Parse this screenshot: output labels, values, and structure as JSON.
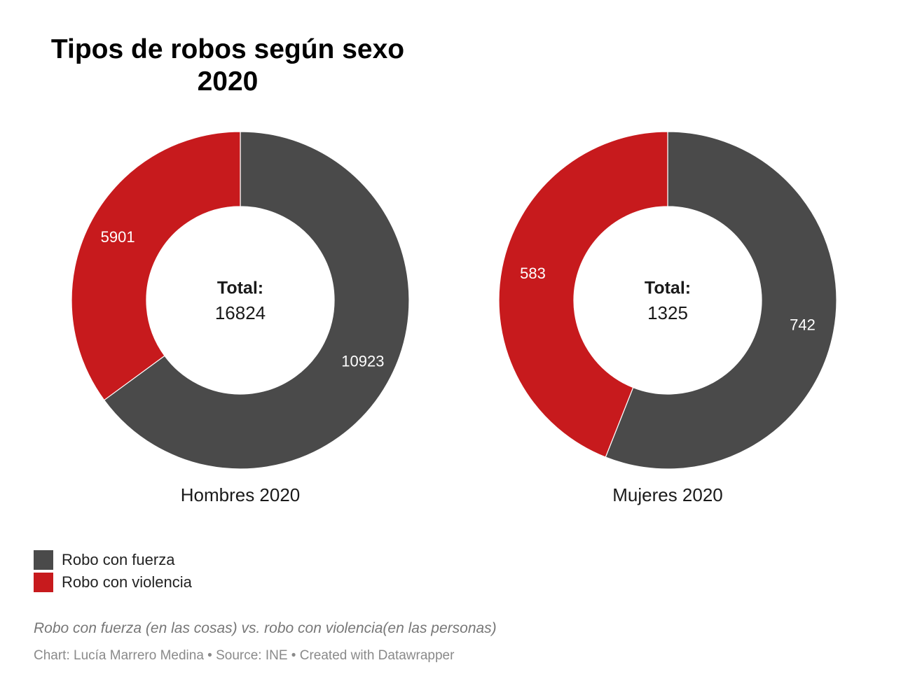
{
  "title": {
    "line1": "Tipos de robos según sexo",
    "line2": "2020"
  },
  "colors": {
    "fuerza": "#4a4a4a",
    "violencia": "#c71a1d",
    "label_on_segment": "#ffffff",
    "center_text": "#1a1a1a"
  },
  "chart_data": [
    {
      "type": "pie",
      "donut": true,
      "label": "Hombres 2020",
      "center_label": "Total:",
      "total": "16824",
      "slices": [
        {
          "name": "Robo con fuerza",
          "value": 10923,
          "color": "#4a4a4a"
        },
        {
          "name": "Robo con violencia",
          "value": 5901,
          "color": "#c71a1d"
        }
      ]
    },
    {
      "type": "pie",
      "donut": true,
      "label": "Mujeres 2020",
      "center_label": "Total:",
      "total": "1325",
      "slices": [
        {
          "name": "Robo con fuerza",
          "value": 742,
          "color": "#4a4a4a"
        },
        {
          "name": "Robo con violencia",
          "value": 583,
          "color": "#c71a1d"
        }
      ]
    }
  ],
  "legend": {
    "items": [
      {
        "label": "Robo con fuerza",
        "color": "#4a4a4a"
      },
      {
        "label": "Robo con violencia",
        "color": "#c71a1d"
      }
    ]
  },
  "note": "Robo con fuerza (en las cosas) vs. robo con violencia(en las personas)",
  "credits": "Chart: Lucía Marrero Medina • Source: INE • Created with Datawrapper"
}
